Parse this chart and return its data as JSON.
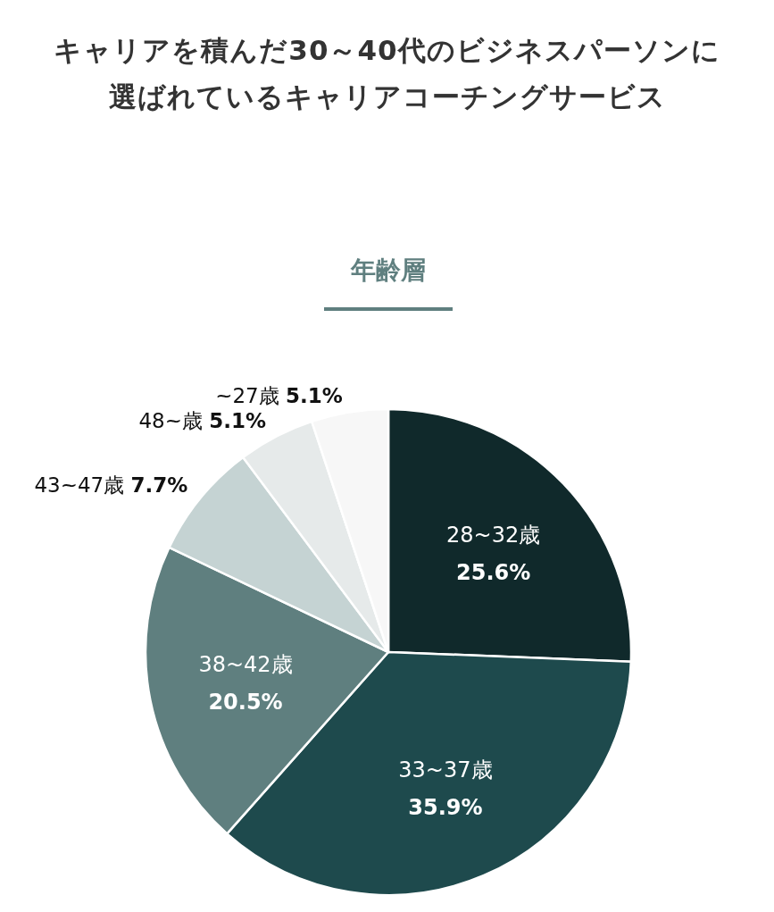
{
  "chart_data": {
    "type": "pie",
    "title": "キャリアを積んだ30～40代のビジネスパーソンに選ばれているキャリアコーチングサービス",
    "subtitle": "年齢層",
    "categories": [
      "28~32歳",
      "33~37歳",
      "38~42歳",
      "43~47歳",
      "48~歳",
      "~27歳"
    ],
    "values": [
      25.6,
      35.9,
      20.5,
      7.7,
      5.1,
      5.1
    ],
    "value_labels": [
      "25.6%",
      "35.9%",
      "20.5%",
      "7.7%",
      "5.1%",
      "5.1%"
    ],
    "colors": [
      "#10292b",
      "#1e4a4d",
      "#5f7f7f",
      "#c5d3d3",
      "#e6eaea",
      "#f7f7f7"
    ]
  }
}
